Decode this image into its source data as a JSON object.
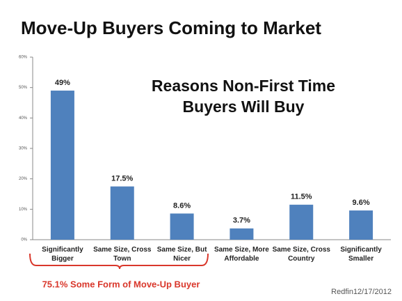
{
  "chart_data": {
    "type": "bar",
    "title": "Move-Up Buyers Coming to Market",
    "subtitle": "Reasons Non-First Time Buyers Will Buy",
    "annotation": "75.1% Some Form of Move-Up Buyer",
    "source": "Redfin12/17/2012",
    "categories": [
      "Significantly Bigger",
      "Same Size, Cross Town",
      "Same Size, But Nicer",
      "Same Size, More Affordable",
      "Same Size, Cross Country",
      "Significantly Smaller"
    ],
    "values": [
      49,
      17.5,
      8.6,
      3.7,
      11.5,
      9.6
    ],
    "value_labels": [
      "49%",
      "17.5%",
      "8.6%",
      "3.7%",
      "11.5%",
      "9.6%"
    ],
    "color": "#4f81bd",
    "ylim": [
      0,
      60
    ],
    "yticks": [
      {
        "value": 0,
        "label": "0%"
      },
      {
        "value": 10,
        "label": "10%"
      },
      {
        "value": 20,
        "label": "20%"
      },
      {
        "value": 30,
        "label": "30%"
      },
      {
        "value": 40,
        "label": "40%"
      },
      {
        "value": 50,
        "label": "50%"
      },
      {
        "value": 60,
        "label": "60%"
      }
    ],
    "grid": false
  }
}
